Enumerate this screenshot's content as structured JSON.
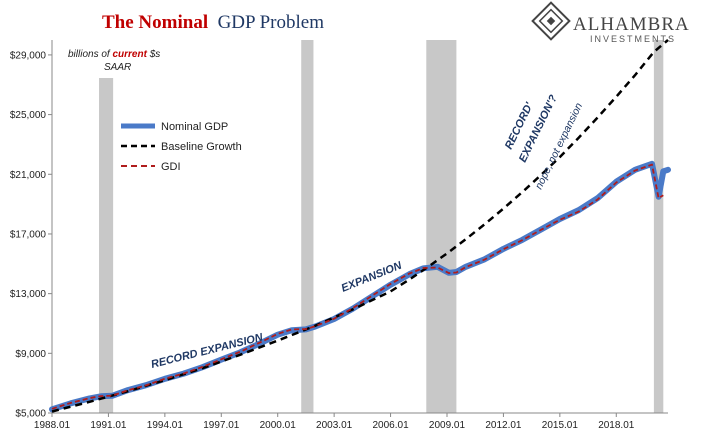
{
  "title": {
    "part1": "The Nominal",
    "part2": "GDP Problem"
  },
  "logo": {
    "name": "ALHAMBRA",
    "sub": "INVESTMENTS"
  },
  "units": {
    "line1_pre": "billions of ",
    "line1_em": "current",
    "line1_post": " $s",
    "line2": "SAAR"
  },
  "legend": {
    "nominal_gdp": "Nominal GDP",
    "baseline": "Baseline Growth",
    "gdi": "GDI"
  },
  "annotations": {
    "record_expansion": "RECORD EXPANSION",
    "expansion": "EXPANSION",
    "record_expansion_q_1": "RECORD'",
    "record_expansion_q_2": "EXPANSION'?",
    "nope": "nope, not expansion"
  },
  "colors": {
    "nominal_gdp": "#4a7ac8",
    "baseline": "#000000",
    "gdi": "#b01c1c",
    "recession": "#c8c8c8",
    "annotation": "#1f3864"
  },
  "chart_data": {
    "type": "line",
    "title": "The Nominal GDP Problem",
    "ylabel": "billions of current $s SAAR",
    "xlim": [
      1988.0,
      2020.75
    ],
    "ylim": [
      5000,
      30000
    ],
    "y_ticks": [
      5000,
      9000,
      13000,
      17000,
      21000,
      25000,
      29000
    ],
    "y_tick_labels": [
      "$5,000",
      "$9,000",
      "$13,000",
      "$17,000",
      "$21,000",
      "$25,000",
      "$29,000"
    ],
    "x_ticks": [
      1988.0,
      1991.0,
      1994.0,
      1997.0,
      2000.0,
      2003.0,
      2006.0,
      2009.0,
      2012.0,
      2015.0,
      2018.0
    ],
    "x_tick_labels": [
      "1988.01",
      "1991.01",
      "1994.01",
      "1997.01",
      "2000.01",
      "2003.01",
      "2006.01",
      "2009.01",
      "2012.01",
      "2015.01",
      "2018.01"
    ],
    "legend_position": "upper-left",
    "grid": false,
    "recessions": [
      [
        1990.5,
        1991.25
      ],
      [
        2001.25,
        2001.9
      ],
      [
        2007.9,
        2009.5
      ],
      [
        2020.0,
        2020.5
      ]
    ],
    "series": [
      {
        "name": "Nominal GDP",
        "x": [
          1988.0,
          1989.0,
          1990.0,
          1990.6,
          1991.2,
          1992.0,
          1993.0,
          1994.0,
          1995.0,
          1996.0,
          1997.0,
          1998.0,
          1999.0,
          2000.0,
          2000.75,
          2001.5,
          2002.0,
          2003.0,
          2004.0,
          2005.0,
          2006.0,
          2007.0,
          2007.75,
          2008.5,
          2009.1,
          2009.5,
          2010.0,
          2011.0,
          2012.0,
          2013.0,
          2014.0,
          2015.0,
          2016.0,
          2017.0,
          2018.0,
          2019.0,
          2019.9,
          2020.25,
          2020.5,
          2020.75
        ],
        "values": [
          5250,
          5650,
          5980,
          6120,
          6150,
          6520,
          6860,
          7290,
          7640,
          8070,
          8580,
          9060,
          9630,
          10250,
          10550,
          10600,
          10800,
          11300,
          12000,
          12800,
          13600,
          14300,
          14700,
          14800,
          14400,
          14450,
          14800,
          15300,
          16000,
          16600,
          17300,
          18000,
          18600,
          19400,
          20500,
          21300,
          21700,
          19500,
          21200,
          21300
        ]
      },
      {
        "name": "Baseline Growth",
        "x": [
          1988.0,
          1990.0,
          1992.0,
          1994.0,
          1996.0,
          1998.0,
          2000.0,
          2002.0,
          2004.0,
          2006.0,
          2007.0,
          2008.0,
          2009.0,
          2010.0,
          2011.0,
          2012.0,
          2013.0,
          2014.0,
          2015.0,
          2016.0,
          2017.0,
          2018.0,
          2019.0,
          2020.0,
          2020.75
        ],
        "values": [
          5100,
          5750,
          6450,
          7200,
          8000,
          8900,
          9850,
          10850,
          11950,
          13150,
          13950,
          14800,
          15700,
          16650,
          17650,
          18700,
          19800,
          20950,
          22150,
          23450,
          24800,
          26200,
          27650,
          29200,
          30000
        ]
      },
      {
        "name": "GDI",
        "x": [
          1988.0,
          1989.0,
          1990.0,
          1990.6,
          1991.2,
          1992.0,
          1993.0,
          1994.0,
          1995.0,
          1996.0,
          1997.0,
          1998.0,
          1999.0,
          2000.0,
          2000.75,
          2001.5,
          2002.0,
          2003.0,
          2004.0,
          2005.0,
          2006.0,
          2007.0,
          2007.75,
          2008.5,
          2009.1,
          2009.5,
          2010.0,
          2011.0,
          2012.0,
          2013.0,
          2014.0,
          2015.0,
          2016.0,
          2017.0,
          2018.0,
          2019.0,
          2019.9,
          2020.25,
          2020.5
        ],
        "values": [
          5280,
          5680,
          6000,
          6130,
          6160,
          6510,
          6850,
          7300,
          7650,
          8090,
          8600,
          9100,
          9690,
          10300,
          10600,
          10620,
          10820,
          11320,
          12030,
          12850,
          13650,
          14350,
          14720,
          14750,
          14380,
          14420,
          14780,
          15280,
          15980,
          16580,
          17280,
          17950,
          18500,
          19300,
          20450,
          21250,
          21650,
          19400,
          19600
        ]
      }
    ]
  }
}
